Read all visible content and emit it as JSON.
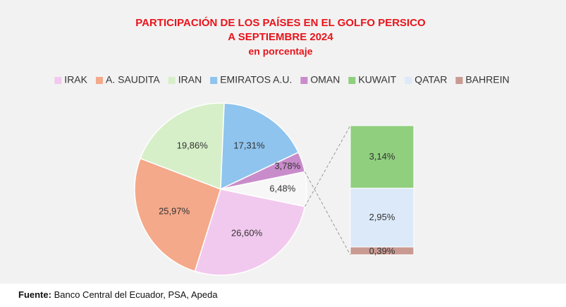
{
  "chart_data": {
    "type": "pie",
    "title": "PARTICIPACIÓN DE LOS PAÍSES EN EL GOLFO PERSICO",
    "subtitle": "A SEPTIEMBRE 2024",
    "unit_label": "en porcentaje",
    "categories": [
      "IRAK",
      "A. SAUDITA",
      "IRAN",
      "EMIRATOS A.U.",
      "OMAN",
      null
    ],
    "values": [
      26.6,
      25.97,
      19.86,
      17.31,
      3.78,
      6.48
    ],
    "value_labels": [
      "26,60%",
      "25,97%",
      "19,86%",
      "17,31%",
      "3,78%",
      "6,48%"
    ],
    "colors": [
      "#f2c9ee",
      "#f4a98a",
      "#d6efc8",
      "#8ec4ee",
      "#c98ccb",
      "#f7f7f7"
    ],
    "bar_of_pie": {
      "categories": [
        "KUWAIT",
        "QATAR",
        "BAHREIN"
      ],
      "values": [
        3.14,
        2.95,
        0.39
      ],
      "value_labels": [
        "3,14%",
        "2,95%",
        "0,39%"
      ],
      "colors": [
        "#8fcf7e",
        "#dce9f8",
        "#c99a92"
      ]
    },
    "legend_position": "top",
    "source_label": "Fuente:",
    "source": "Banco Central del Ecuador, PSA, Apeda"
  }
}
